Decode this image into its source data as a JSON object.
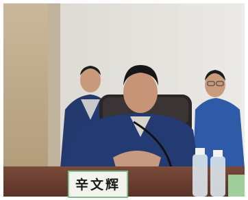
{
  "nameplate": "辛文辉"
}
